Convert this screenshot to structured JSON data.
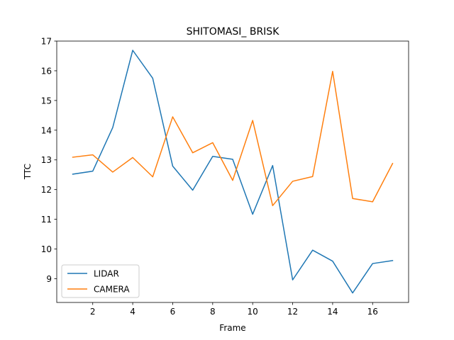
{
  "chart_data": {
    "type": "line",
    "title": "SHITOMASI_ BRISK",
    "xlabel": "Frame",
    "ylabel": "TTC",
    "x": [
      1,
      2,
      3,
      4,
      5,
      6,
      7,
      8,
      9,
      10,
      11,
      12,
      13,
      14,
      15,
      16,
      17
    ],
    "xlim": [
      0.2,
      17.8
    ],
    "ylim": [
      8.2,
      17.0
    ],
    "xticks": [
      2,
      4,
      6,
      8,
      10,
      12,
      14,
      16
    ],
    "yticks": [
      9,
      10,
      11,
      12,
      13,
      14,
      15,
      16,
      17
    ],
    "grid": false,
    "legend_position": "lower-left",
    "series": [
      {
        "name": "LIDAR",
        "color": "#1f77b4",
        "values": [
          12.52,
          12.62,
          14.09,
          16.69,
          15.75,
          12.79,
          11.98,
          13.12,
          13.02,
          11.17,
          12.81,
          8.96,
          9.96,
          9.59,
          8.52,
          9.51,
          9.61
        ]
      },
      {
        "name": "CAMERA",
        "color": "#ff7f0e",
        "values": [
          13.09,
          13.17,
          12.59,
          13.08,
          12.43,
          14.45,
          13.24,
          13.58,
          12.31,
          14.33,
          11.46,
          12.28,
          12.44,
          15.98,
          11.7,
          11.59,
          12.88
        ]
      }
    ]
  }
}
